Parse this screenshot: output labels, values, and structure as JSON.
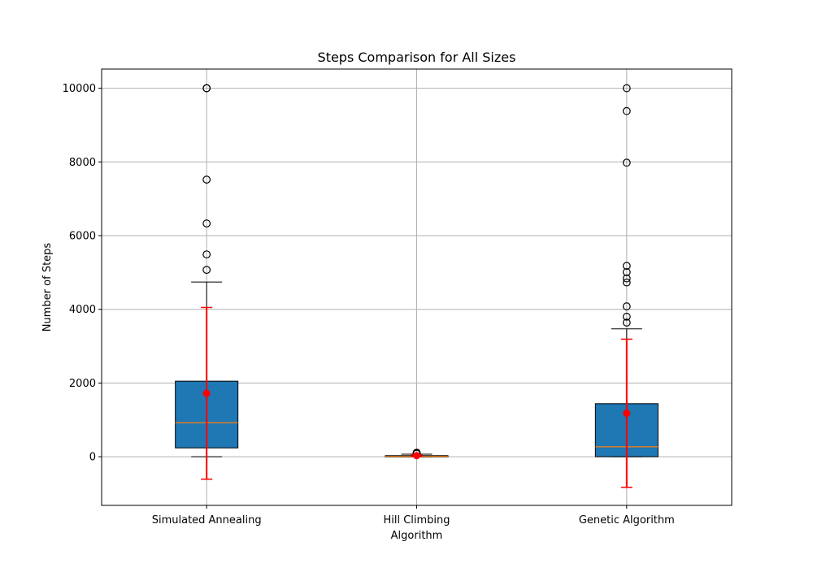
{
  "chart_data": {
    "type": "box",
    "title": "Steps Comparison for All Sizes",
    "xlabel": "Algorithm",
    "ylabel": "Number of Steps",
    "categories": [
      "Simulated Annealing",
      "Hill Climbing",
      "Genetic Algorithm"
    ],
    "ylim": [
      -1320,
      10520
    ],
    "yticks": [
      0,
      2000,
      4000,
      6000,
      8000,
      10000
    ],
    "grid": true,
    "box_color": "#1f77b4",
    "median_color": "#ff7f0e",
    "mean_marker_color": "#ff0000",
    "errorbar_color": "#ff0000",
    "boxes": [
      {
        "label": "Simulated Annealing",
        "whisker_low": 0,
        "q1": 240,
        "median": 920,
        "q3": 2050,
        "whisker_high": 4740,
        "outliers": [
          5070,
          5490,
          6330,
          7520,
          10000,
          10000
        ],
        "mean": 1720,
        "std": 2330
      },
      {
        "label": "Hill Climbing",
        "whisker_low": 0,
        "q1": 0,
        "median": 10,
        "q3": 30,
        "whisker_high": 70,
        "outliers": [
          80,
          100,
          110
        ],
        "mean": 30,
        "std": 20
      },
      {
        "label": "Genetic Algorithm",
        "whisker_low": 0,
        "q1": 0,
        "median": 270,
        "q3": 1440,
        "whisker_high": 3470,
        "outliers": [
          3640,
          3800,
          4080,
          4730,
          4840,
          5010,
          5180,
          7980,
          9380,
          10000
        ],
        "mean": 1180,
        "std": 2010
      }
    ]
  }
}
